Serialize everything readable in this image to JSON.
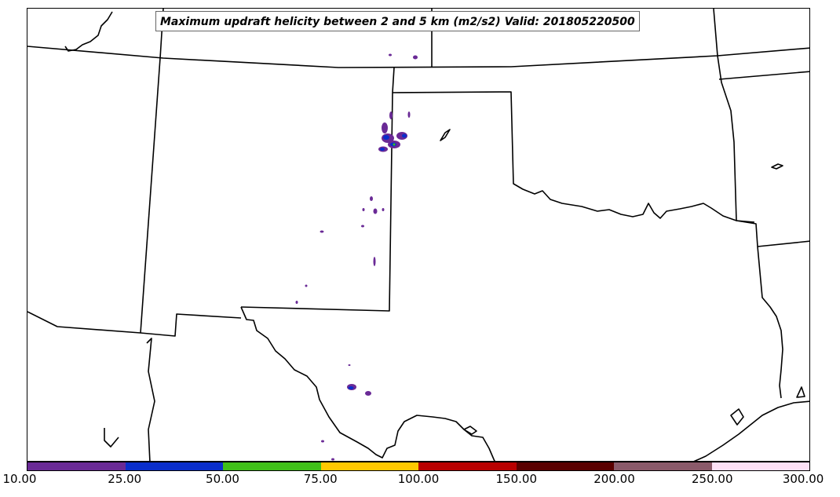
{
  "map": {
    "title": "Maximum updraft helicity between 2 and 5 km (m2/s2) Valid: 201805220500",
    "region": "Southern Plains United States",
    "basemap": "state-boundaries-and-coastlines",
    "field": "updraft-helicity-contours"
  },
  "colorbar": {
    "levels": [
      "10.00",
      "25.00",
      "50.00",
      "75.00",
      "100.00",
      "150.00",
      "200.00",
      "250.00",
      "300.00"
    ],
    "colors": [
      "#6a2a96",
      "#0a2ecb",
      "#3fbf18",
      "#ffc800",
      "#b80000",
      "#5a0000",
      "#8a5a6a",
      "#fde0f6"
    ]
  }
}
